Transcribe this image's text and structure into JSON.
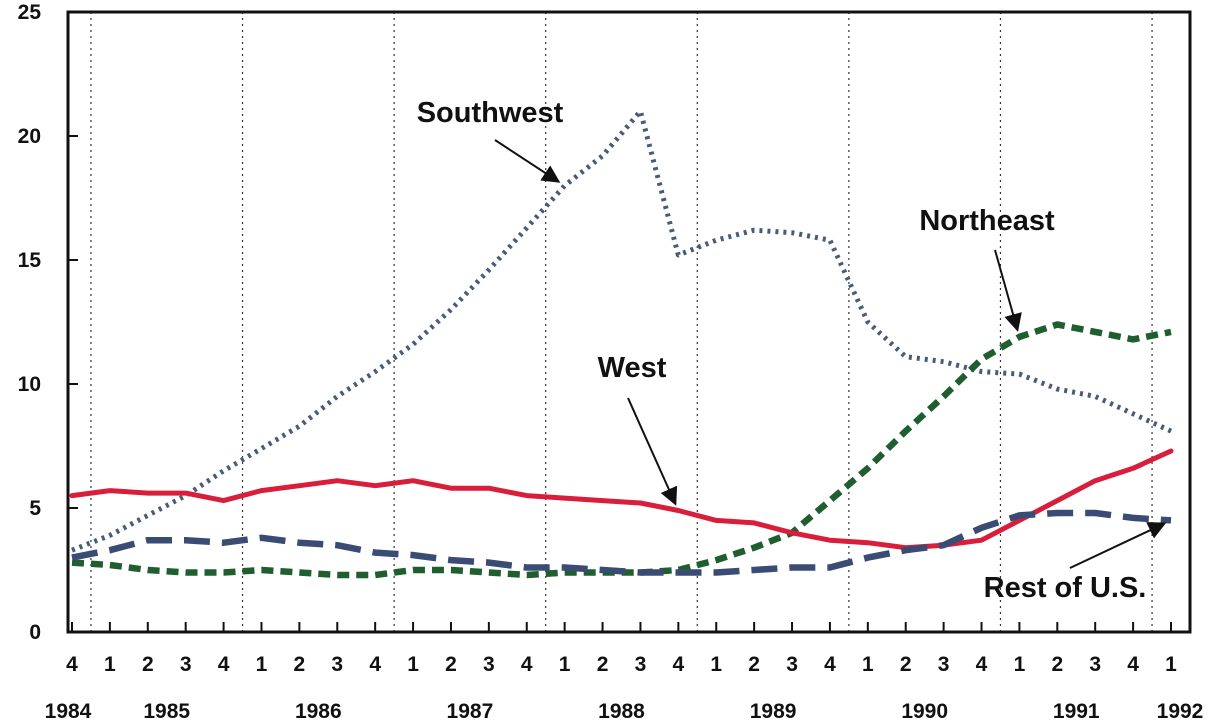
{
  "chart_data": {
    "type": "line",
    "title": "",
    "xlabel": "",
    "ylabel": "",
    "ylim": [
      0,
      25
    ],
    "y_ticks": [
      0,
      5,
      10,
      15,
      20,
      25
    ],
    "grid": "vertical dotted lines at year boundaries",
    "quarters": [
      "4",
      "1",
      "2",
      "3",
      "4",
      "1",
      "2",
      "3",
      "4",
      "1",
      "2",
      "3",
      "4",
      "1",
      "2",
      "3",
      "4",
      "1",
      "2",
      "3",
      "4",
      "1",
      "2",
      "3",
      "4",
      "1",
      "2",
      "3",
      "4",
      "1"
    ],
    "years": [
      "1984",
      "1985",
      "1986",
      "1987",
      "1988",
      "1989",
      "1990",
      "1991",
      "1992"
    ],
    "series": [
      {
        "name": "Southwest",
        "color": "#4a5a7a",
        "style": "dotted",
        "values": [
          3.3,
          3.9,
          4.7,
          5.5,
          6.5,
          7.4,
          8.3,
          9.5,
          10.5,
          11.6,
          13.0,
          14.6,
          16.3,
          18.0,
          19.2,
          21.0,
          15.2,
          15.8,
          16.2,
          16.1,
          15.8,
          12.5,
          11.1,
          10.9,
          10.5,
          10.4,
          9.8,
          9.5,
          8.8,
          8.1
        ]
      },
      {
        "name": "Northeast",
        "color": "#1f5e2e",
        "style": "dashed",
        "values": [
          2.8,
          2.7,
          2.5,
          2.4,
          2.4,
          2.5,
          2.4,
          2.3,
          2.3,
          2.5,
          2.5,
          2.4,
          2.3,
          2.4,
          2.4,
          2.4,
          2.5,
          2.9,
          3.4,
          4.0,
          5.3,
          6.6,
          8.1,
          9.5,
          11.0,
          11.9,
          12.4,
          12.1,
          11.8,
          12.1
        ]
      },
      {
        "name": "West",
        "color": "#d81e3a",
        "style": "solid",
        "values": [
          5.5,
          5.7,
          5.6,
          5.6,
          5.3,
          5.7,
          5.9,
          6.1,
          5.9,
          6.1,
          5.8,
          5.8,
          5.5,
          5.4,
          5.3,
          5.2,
          4.9,
          4.5,
          4.4,
          4.0,
          3.7,
          3.6,
          3.4,
          3.5,
          3.7,
          4.5,
          5.3,
          6.1,
          6.6,
          7.3
        ]
      },
      {
        "name": "Rest of U.S.",
        "color": "#3a4b74",
        "style": "long-dashed",
        "values": [
          3.0,
          3.3,
          3.7,
          3.7,
          3.6,
          3.8,
          3.6,
          3.5,
          3.2,
          3.1,
          2.9,
          2.8,
          2.6,
          2.6,
          2.5,
          2.4,
          2.4,
          2.4,
          2.5,
          2.6,
          2.6,
          3.0,
          3.3,
          3.5,
          4.2,
          4.7,
          4.8,
          4.8,
          4.6,
          4.5
        ]
      }
    ],
    "annotations": [
      {
        "label": "Southwest",
        "target_series": "Southwest",
        "target_index": 13
      },
      {
        "label": "Northeast",
        "target_series": "Northeast",
        "target_index": 25
      },
      {
        "label": "West",
        "target_series": "West",
        "target_index": 16
      },
      {
        "label": "Rest of U.S.",
        "target_series": "Rest of U.S.",
        "target_index": 29
      }
    ]
  }
}
